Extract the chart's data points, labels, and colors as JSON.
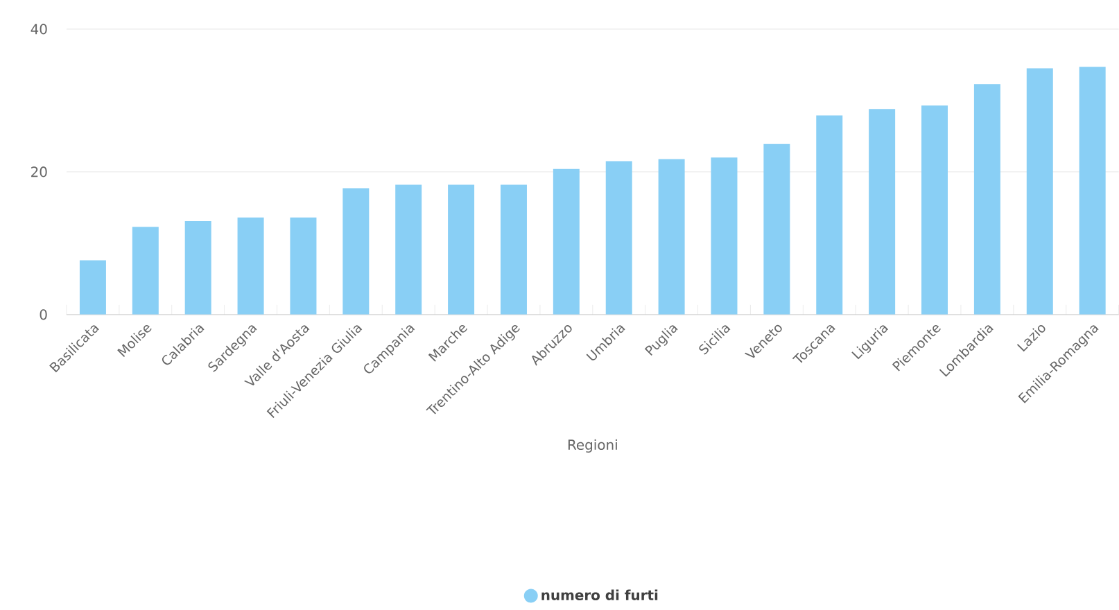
{
  "chart_data": {
    "type": "bar",
    "xlabel": "Regioni",
    "categories": [
      "Basilicata",
      "Molise",
      "Calabria",
      "Sardegna",
      "Valle d'Aosta",
      "Friuli-Venezia Giulia",
      "Campania",
      "Marche",
      "Trentino-Alto Adige",
      "Abruzzo",
      "Umbria",
      "Puglia",
      "Sicilia",
      "Veneto",
      "Toscana",
      "Liguria",
      "Piemonte",
      "Lombardia",
      "Lazio",
      "Emilia-Romagna"
    ],
    "series": [
      {
        "name": "numero di furti",
        "color": "#89cff5",
        "values": [
          7.6,
          12.3,
          13.1,
          13.6,
          13.6,
          17.7,
          18.2,
          18.2,
          18.2,
          20.4,
          21.5,
          21.8,
          22.0,
          23.9,
          27.9,
          28.8,
          29.3,
          32.3,
          34.5,
          34.7
        ]
      }
    ],
    "ylim": [
      0,
      40
    ],
    "yticks": [
      0,
      20,
      40
    ],
    "grid": "y",
    "legend": "bottom"
  }
}
